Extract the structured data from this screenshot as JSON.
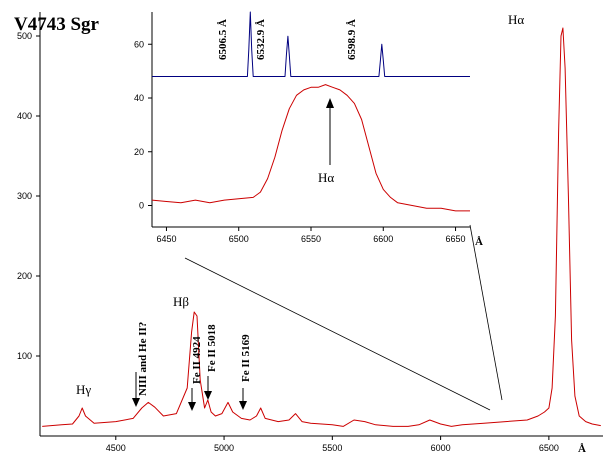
{
  "chart_data": [
    {
      "type": "line",
      "title": "V4743 Sgr",
      "xlabel": "Å",
      "ylabel": "",
      "xlim": [
        4150,
        6750
      ],
      "ylim": [
        0,
        530
      ],
      "xticks": [
        4500,
        5000,
        5500,
        6000,
        6500
      ],
      "yticks": [
        100,
        200,
        300,
        400,
        500
      ],
      "grid": false,
      "series": [
        {
          "color": "#cc0000",
          "x": [
            4160,
            4250,
            4300,
            4330,
            4345,
            4360,
            4400,
            4500,
            4580,
            4620,
            4650,
            4680,
            4720,
            4780,
            4830,
            4850,
            4862,
            4875,
            4890,
            4910,
            4925,
            4940,
            4960,
            4990,
            5018,
            5040,
            5080,
            5120,
            5150,
            5169,
            5190,
            5250,
            5300,
            5330,
            5360,
            5400,
            5500,
            5550,
            5600,
            5650,
            5700,
            5780,
            5850,
            5900,
            5950,
            6000,
            6050,
            6100,
            6200,
            6300,
            6400,
            6450,
            6480,
            6500,
            6515,
            6530,
            6545,
            6556,
            6565,
            6575,
            6590,
            6605,
            6620,
            6640,
            6670,
            6700,
            6740
          ],
          "y": [
            12,
            14,
            15,
            25,
            35,
            25,
            16,
            18,
            22,
            35,
            42,
            36,
            25,
            28,
            60,
            130,
            155,
            150,
            70,
            35,
            45,
            30,
            25,
            28,
            42,
            30,
            22,
            20,
            25,
            35,
            22,
            18,
            20,
            28,
            18,
            16,
            14,
            12,
            20,
            18,
            14,
            12,
            12,
            14,
            20,
            15,
            12,
            14,
            16,
            18,
            20,
            25,
            30,
            35,
            60,
            150,
            380,
            500,
            510,
            460,
            300,
            120,
            50,
            25,
            18,
            15,
            13
          ]
        }
      ],
      "annotations": [
        {
          "label": "Hγ",
          "x": 4340
        },
        {
          "label": "NIII and He II?",
          "x": 4640
        },
        {
          "label": "Hβ",
          "x": 4861
        },
        {
          "label": "Fe II 4924",
          "x": 4924
        },
        {
          "label": "Fe II 5018",
          "x": 5018
        },
        {
          "label": "Fe II 5169",
          "x": 5169
        },
        {
          "label": "Hα",
          "x": 6563
        }
      ]
    },
    {
      "type": "line",
      "title": "",
      "xlabel": "Å",
      "ylabel": "",
      "xlim": [
        6440,
        6660
      ],
      "ylim": [
        -8,
        72
      ],
      "xticks": [
        6450,
        6500,
        6550,
        6600,
        6650
      ],
      "yticks": [
        0,
        20,
        40,
        60
      ],
      "grid": false,
      "series": [
        {
          "color": "#cc0000",
          "x": [
            6440,
            6450,
            6460,
            6470,
            6480,
            6490,
            6500,
            6510,
            6515,
            6520,
            6525,
            6530,
            6535,
            6540,
            6545,
            6550,
            6555,
            6560,
            6565,
            6570,
            6575,
            6580,
            6585,
            6590,
            6595,
            6600,
            6605,
            6610,
            6620,
            6630,
            6640,
            6650,
            6660
          ],
          "y": [
            2,
            1.5,
            1,
            2,
            1,
            2,
            2.5,
            3,
            5,
            10,
            18,
            28,
            36,
            41,
            43,
            44,
            44,
            45,
            44,
            43,
            41,
            38,
            32,
            22,
            12,
            6,
            3,
            1,
            0,
            -1,
            -1,
            -2,
            -2
          ]
        },
        {
          "color": "#000080",
          "x": [
            6440,
            6506,
            6507,
            6508,
            6509,
            6510,
            6532,
            6533,
            6534,
            6535,
            6536,
            6597,
            6598,
            6599,
            6600,
            6601,
            6660
          ],
          "y": [
            48,
            48,
            58,
            72,
            58,
            48,
            48,
            56,
            63,
            56,
            48,
            48,
            54,
            60,
            54,
            48,
            48
          ]
        }
      ],
      "annotations": [
        {
          "label": "6506.5 Å",
          "x": 6506.5
        },
        {
          "label": "6532.9 Å",
          "x": 6532.9
        },
        {
          "label": "6598.9 Å",
          "x": 6598.9
        },
        {
          "label": "Hα",
          "x": 6563
        }
      ]
    }
  ]
}
